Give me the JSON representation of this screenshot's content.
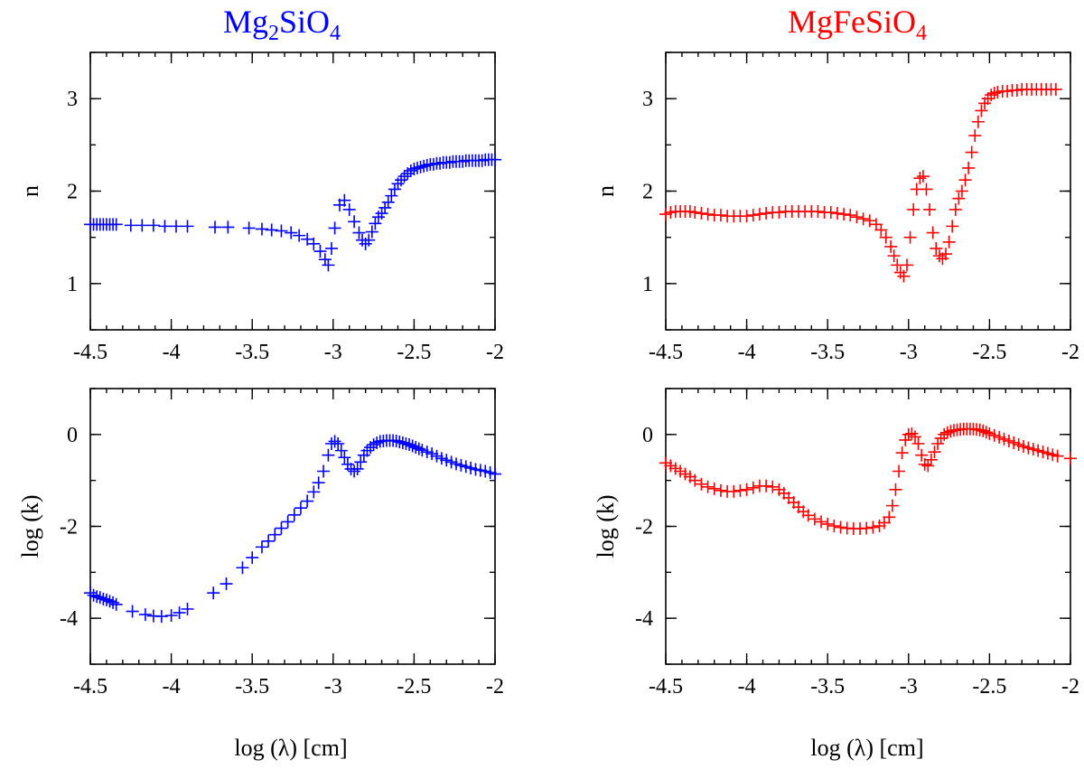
{
  "figure": {
    "xlabel": "log (λ) [cm]",
    "colors": {
      "left": "#0000ff",
      "right": "#ff0000"
    }
  },
  "chart_data": [
    {
      "type": "scatter",
      "panel": "top-left",
      "title": "Mg2SiO4",
      "title_parts": [
        "Mg",
        "2",
        "SiO",
        "4"
      ],
      "color": "#0000ff",
      "xlabel": "log (λ) [cm]",
      "ylabel": "n",
      "xlim": [
        -4.5,
        -2
      ],
      "ylim": [
        0.5,
        3.5
      ],
      "xticks": [
        -4.5,
        -4,
        -3.5,
        -3,
        -2.5,
        -2
      ],
      "xtick_labels": [
        "-4.5",
        "-4",
        "-3.5",
        "-3",
        "-2.5",
        "-2"
      ],
      "yticks": [
        1,
        2,
        3
      ],
      "ytick_labels": [
        "1",
        "2",
        "3"
      ],
      "x": [
        -4.5,
        -4.48,
        -4.46,
        -4.44,
        -4.42,
        -4.4,
        -4.38,
        -4.36,
        -4.34,
        -4.25,
        -4.18,
        -4.11,
        -4.04,
        -3.97,
        -3.9,
        -3.73,
        -3.65,
        -3.52,
        -3.44,
        -3.38,
        -3.32,
        -3.26,
        -3.21,
        -3.16,
        -3.12,
        -3.08,
        -3.05,
        -3.03,
        -3.01,
        -2.99,
        -2.96,
        -2.93,
        -2.9,
        -2.87,
        -2.84,
        -2.82,
        -2.8,
        -2.78,
        -2.76,
        -2.74,
        -2.72,
        -2.7,
        -2.68,
        -2.66,
        -2.64,
        -2.62,
        -2.6,
        -2.58,
        -2.56,
        -2.54,
        -2.52,
        -2.5,
        -2.48,
        -2.46,
        -2.44,
        -2.42,
        -2.4,
        -2.38,
        -2.36,
        -2.34,
        -2.32,
        -2.3,
        -2.28,
        -2.26,
        -2.24,
        -2.22,
        -2.2,
        -2.18,
        -2.16,
        -2.14,
        -2.12,
        -2.1,
        -2.08,
        -2.06,
        -2.04,
        -2.02,
        -2.0
      ],
      "y": [
        1.64,
        1.64,
        1.64,
        1.64,
        1.64,
        1.64,
        1.64,
        1.64,
        1.64,
        1.63,
        1.63,
        1.63,
        1.62,
        1.62,
        1.62,
        1.61,
        1.61,
        1.6,
        1.59,
        1.58,
        1.57,
        1.55,
        1.52,
        1.48,
        1.43,
        1.35,
        1.26,
        1.2,
        1.38,
        1.6,
        1.85,
        1.9,
        1.8,
        1.67,
        1.55,
        1.47,
        1.43,
        1.47,
        1.56,
        1.65,
        1.72,
        1.76,
        1.82,
        1.88,
        1.95,
        2.02,
        2.08,
        2.12,
        2.16,
        2.19,
        2.22,
        2.24,
        2.25,
        2.26,
        2.27,
        2.28,
        2.29,
        2.29,
        2.3,
        2.3,
        2.31,
        2.31,
        2.31,
        2.32,
        2.32,
        2.32,
        2.32,
        2.33,
        2.33,
        2.33,
        2.33,
        2.33,
        2.33,
        2.34,
        2.34,
        2.34,
        2.34
      ]
    },
    {
      "type": "scatter",
      "panel": "top-right",
      "title": "MgFeSiO4",
      "title_parts": [
        "MgFeSiO",
        "4"
      ],
      "color": "#ff0000",
      "xlabel": "log (λ) [cm]",
      "ylabel": "n",
      "xlim": [
        -4.5,
        -2
      ],
      "ylim": [
        0.5,
        3.5
      ],
      "xticks": [
        -4.5,
        -4,
        -3.5,
        -3,
        -2.5,
        -2
      ],
      "xtick_labels": [
        "-4.5",
        "-4",
        "-3.5",
        "-3",
        "-2.5",
        "-2"
      ],
      "yticks": [
        1,
        2,
        3
      ],
      "ytick_labels": [
        "1",
        "2",
        "3"
      ],
      "x": [
        -4.5,
        -4.47,
        -4.44,
        -4.41,
        -4.38,
        -4.35,
        -4.32,
        -4.28,
        -4.24,
        -4.2,
        -4.16,
        -4.12,
        -4.08,
        -4.04,
        -4.0,
        -3.96,
        -3.92,
        -3.88,
        -3.84,
        -3.8,
        -3.76,
        -3.72,
        -3.68,
        -3.64,
        -3.6,
        -3.56,
        -3.52,
        -3.48,
        -3.44,
        -3.4,
        -3.36,
        -3.32,
        -3.28,
        -3.24,
        -3.2,
        -3.17,
        -3.14,
        -3.11,
        -3.09,
        -3.07,
        -3.05,
        -3.03,
        -3.01,
        -2.99,
        -2.97,
        -2.95,
        -2.93,
        -2.91,
        -2.89,
        -2.87,
        -2.85,
        -2.83,
        -2.81,
        -2.79,
        -2.77,
        -2.75,
        -2.73,
        -2.71,
        -2.69,
        -2.67,
        -2.65,
        -2.63,
        -2.61,
        -2.59,
        -2.57,
        -2.55,
        -2.53,
        -2.51,
        -2.49,
        -2.47,
        -2.45,
        -2.42,
        -2.39,
        -2.36,
        -2.33,
        -2.3,
        -2.27,
        -2.24,
        -2.21,
        -2.18,
        -2.15,
        -2.12,
        -2.09
      ],
      "y": [
        1.75,
        1.77,
        1.78,
        1.78,
        1.78,
        1.78,
        1.77,
        1.76,
        1.75,
        1.74,
        1.74,
        1.73,
        1.73,
        1.73,
        1.73,
        1.74,
        1.75,
        1.76,
        1.77,
        1.77,
        1.78,
        1.78,
        1.78,
        1.78,
        1.78,
        1.78,
        1.77,
        1.77,
        1.76,
        1.75,
        1.74,
        1.72,
        1.7,
        1.68,
        1.64,
        1.58,
        1.5,
        1.4,
        1.3,
        1.2,
        1.12,
        1.08,
        1.2,
        1.5,
        1.8,
        2.02,
        2.14,
        2.16,
        2.02,
        1.8,
        1.55,
        1.38,
        1.3,
        1.27,
        1.32,
        1.45,
        1.62,
        1.8,
        1.92,
        2.0,
        2.12,
        2.25,
        2.42,
        2.6,
        2.75,
        2.87,
        2.95,
        3.0,
        3.04,
        3.06,
        3.07,
        3.08,
        3.08,
        3.09,
        3.09,
        3.1,
        3.1,
        3.1,
        3.1,
        3.1,
        3.1,
        3.1,
        3.1
      ]
    },
    {
      "type": "scatter",
      "panel": "bottom-left",
      "title": "",
      "color": "#0000ff",
      "xlabel": "log (λ) [cm]",
      "ylabel": "log (k)",
      "xlim": [
        -4.5,
        -2
      ],
      "ylim": [
        -5,
        1
      ],
      "xticks": [
        -4.5,
        -4,
        -3.5,
        -3,
        -2.5,
        -2
      ],
      "xtick_labels": [
        "-4.5",
        "-4",
        "-3.5",
        "-3",
        "-2.5",
        "-2"
      ],
      "yticks": [
        -4,
        -2,
        0
      ],
      "ytick_labels": [
        "-4",
        "-2",
        "0"
      ],
      "x": [
        -4.5,
        -4.48,
        -4.46,
        -4.44,
        -4.42,
        -4.4,
        -4.38,
        -4.36,
        -4.34,
        -4.24,
        -4.16,
        -4.11,
        -4.06,
        -4.0,
        -3.95,
        -3.9,
        -3.74,
        -3.66,
        -3.56,
        -3.5,
        -3.44,
        -3.4,
        -3.36,
        -3.32,
        -3.28,
        -3.24,
        -3.2,
        -3.16,
        -3.12,
        -3.09,
        -3.06,
        -3.03,
        -3.01,
        -2.99,
        -2.97,
        -2.95,
        -2.93,
        -2.91,
        -2.89,
        -2.87,
        -2.85,
        -2.83,
        -2.81,
        -2.79,
        -2.77,
        -2.75,
        -2.73,
        -2.71,
        -2.69,
        -2.67,
        -2.65,
        -2.63,
        -2.61,
        -2.59,
        -2.57,
        -2.55,
        -2.53,
        -2.51,
        -2.49,
        -2.47,
        -2.45,
        -2.42,
        -2.39,
        -2.36,
        -2.33,
        -2.3,
        -2.27,
        -2.24,
        -2.21,
        -2.18,
        -2.15,
        -2.12,
        -2.09,
        -2.06,
        -2.03,
        -2.0
      ],
      "y": [
        -3.45,
        -3.5,
        -3.53,
        -3.55,
        -3.58,
        -3.6,
        -3.63,
        -3.66,
        -3.7,
        -3.85,
        -3.92,
        -3.95,
        -3.96,
        -3.94,
        -3.88,
        -3.8,
        -3.45,
        -3.25,
        -2.9,
        -2.68,
        -2.45,
        -2.32,
        -2.18,
        -2.04,
        -1.9,
        -1.75,
        -1.6,
        -1.45,
        -1.25,
        -1.05,
        -0.8,
        -0.45,
        -0.2,
        -0.15,
        -0.2,
        -0.35,
        -0.5,
        -0.65,
        -0.75,
        -0.8,
        -0.75,
        -0.6,
        -0.45,
        -0.35,
        -0.28,
        -0.22,
        -0.18,
        -0.15,
        -0.14,
        -0.13,
        -0.13,
        -0.13,
        -0.14,
        -0.16,
        -0.18,
        -0.2,
        -0.22,
        -0.25,
        -0.28,
        -0.31,
        -0.34,
        -0.38,
        -0.42,
        -0.47,
        -0.52,
        -0.56,
        -0.6,
        -0.64,
        -0.67,
        -0.7,
        -0.73,
        -0.76,
        -0.78,
        -0.8,
        -0.83,
        -0.86
      ]
    },
    {
      "type": "scatter",
      "panel": "bottom-right",
      "title": "",
      "color": "#ff0000",
      "xlabel": "log (λ) [cm]",
      "ylabel": "log (k)",
      "xlim": [
        -4.5,
        -2
      ],
      "ylim": [
        -5,
        1
      ],
      "xticks": [
        -4.5,
        -4,
        -3.5,
        -3,
        -2.5,
        -2
      ],
      "xtick_labels": [
        "-4.5",
        "-4",
        "-3.5",
        "-3",
        "-2.5",
        "-2"
      ],
      "yticks": [
        -4,
        -2,
        0
      ],
      "ytick_labels": [
        "-4",
        "-2",
        "0"
      ],
      "x": [
        -4.5,
        -4.47,
        -4.44,
        -4.41,
        -4.38,
        -4.35,
        -4.32,
        -4.28,
        -4.24,
        -4.2,
        -4.16,
        -4.12,
        -4.08,
        -4.04,
        -4.0,
        -3.96,
        -3.92,
        -3.88,
        -3.84,
        -3.8,
        -3.77,
        -3.74,
        -3.71,
        -3.68,
        -3.65,
        -3.62,
        -3.58,
        -3.54,
        -3.5,
        -3.46,
        -3.42,
        -3.38,
        -3.34,
        -3.3,
        -3.26,
        -3.22,
        -3.18,
        -3.15,
        -3.12,
        -3.1,
        -3.08,
        -3.06,
        -3.04,
        -3.02,
        -3.0,
        -2.98,
        -2.96,
        -2.94,
        -2.92,
        -2.9,
        -2.88,
        -2.86,
        -2.84,
        -2.82,
        -2.8,
        -2.78,
        -2.76,
        -2.74,
        -2.72,
        -2.7,
        -2.68,
        -2.66,
        -2.64,
        -2.62,
        -2.6,
        -2.58,
        -2.56,
        -2.54,
        -2.52,
        -2.5,
        -2.47,
        -2.44,
        -2.41,
        -2.38,
        -2.35,
        -2.32,
        -2.29,
        -2.26,
        -2.23,
        -2.2,
        -2.17,
        -2.14,
        -2.11,
        -2.08,
        -2.0
      ],
      "y": [
        -0.62,
        -0.68,
        -0.74,
        -0.8,
        -0.86,
        -0.92,
        -1.0,
        -1.08,
        -1.14,
        -1.18,
        -1.22,
        -1.24,
        -1.24,
        -1.22,
        -1.2,
        -1.16,
        -1.12,
        -1.12,
        -1.14,
        -1.2,
        -1.28,
        -1.38,
        -1.48,
        -1.58,
        -1.68,
        -1.76,
        -1.84,
        -1.9,
        -1.95,
        -1.99,
        -2.02,
        -2.04,
        -2.05,
        -2.05,
        -2.04,
        -2.02,
        -1.99,
        -1.92,
        -1.8,
        -1.55,
        -1.2,
        -0.8,
        -0.4,
        -0.12,
        0.0,
        0.02,
        -0.05,
        -0.2,
        -0.45,
        -0.65,
        -0.68,
        -0.55,
        -0.38,
        -0.2,
        -0.08,
        0.0,
        0.04,
        0.07,
        0.09,
        0.1,
        0.11,
        0.12,
        0.12,
        0.12,
        0.12,
        0.11,
        0.1,
        0.08,
        0.05,
        0.02,
        -0.02,
        -0.06,
        -0.1,
        -0.14,
        -0.18,
        -0.22,
        -0.26,
        -0.29,
        -0.32,
        -0.35,
        -0.38,
        -0.41,
        -0.44,
        -0.47,
        -0.52
      ]
    }
  ]
}
